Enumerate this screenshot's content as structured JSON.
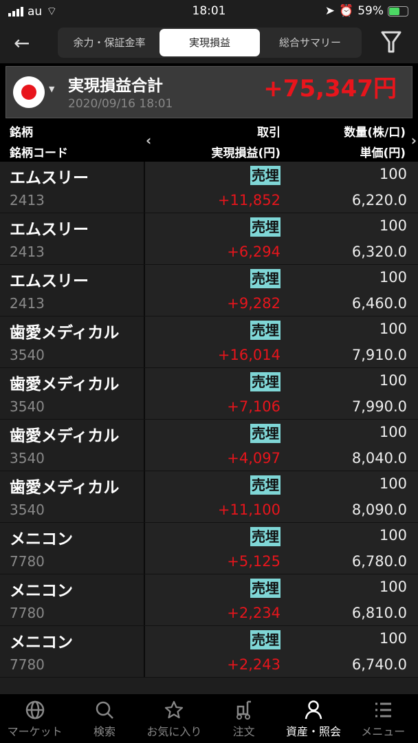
{
  "status_bar": {
    "carrier": "au",
    "time": "18:01",
    "battery": "59%"
  },
  "nav": {
    "tabs": [
      {
        "label": "余力・保証金率",
        "active": false
      },
      {
        "label": "実現損益",
        "active": true
      },
      {
        "label": "総合サマリー",
        "active": false
      }
    ]
  },
  "summary": {
    "title": "実現損益合計",
    "date": "2020/09/16 18:01",
    "total": "+75,347円"
  },
  "table": {
    "headers": {
      "name": "銘柄",
      "code": "銘柄コード",
      "trade": "取引",
      "pl": "実現損益(円)",
      "qty": "数量(株/口)",
      "price": "単価(円)"
    },
    "rows": [
      {
        "name": "エムスリー",
        "code": "2413",
        "trade": "売埋",
        "pl": "+11,852",
        "qty": "100",
        "price": "6,220.0"
      },
      {
        "name": "エムスリー",
        "code": "2413",
        "trade": "売埋",
        "pl": "+6,294",
        "qty": "100",
        "price": "6,320.0"
      },
      {
        "name": "エムスリー",
        "code": "2413",
        "trade": "売埋",
        "pl": "+9,282",
        "qty": "100",
        "price": "6,460.0"
      },
      {
        "name": "歯愛メディカル",
        "code": "3540",
        "trade": "売埋",
        "pl": "+16,014",
        "qty": "100",
        "price": "7,910.0"
      },
      {
        "name": "歯愛メディカル",
        "code": "3540",
        "trade": "売埋",
        "pl": "+7,106",
        "qty": "100",
        "price": "7,990.0"
      },
      {
        "name": "歯愛メディカル",
        "code": "3540",
        "trade": "売埋",
        "pl": "+4,097",
        "qty": "100",
        "price": "8,040.0"
      },
      {
        "name": "歯愛メディカル",
        "code": "3540",
        "trade": "売埋",
        "pl": "+11,100",
        "qty": "100",
        "price": "8,090.0"
      },
      {
        "name": "メニコン",
        "code": "7780",
        "trade": "売埋",
        "pl": "+5,125",
        "qty": "100",
        "price": "6,780.0"
      },
      {
        "name": "メニコン",
        "code": "7780",
        "trade": "売埋",
        "pl": "+2,234",
        "qty": "100",
        "price": "6,810.0"
      },
      {
        "name": "メニコン",
        "code": "7780",
        "trade": "売埋",
        "pl": "+2,243",
        "qty": "100",
        "price": "6,740.0"
      }
    ]
  },
  "tabbar": [
    {
      "label": "マーケット",
      "icon": "globe-icon"
    },
    {
      "label": "検索",
      "icon": "search-icon"
    },
    {
      "label": "お気に入り",
      "icon": "star-icon"
    },
    {
      "label": "注文",
      "icon": "cart-icon"
    },
    {
      "label": "資産・照会",
      "icon": "person-icon",
      "active": true
    },
    {
      "label": "メニュー",
      "icon": "menu-icon"
    }
  ],
  "colors": {
    "profit": "#e8151c",
    "trade_badge": "#7fd6d6",
    "battery": "#4cd964"
  }
}
